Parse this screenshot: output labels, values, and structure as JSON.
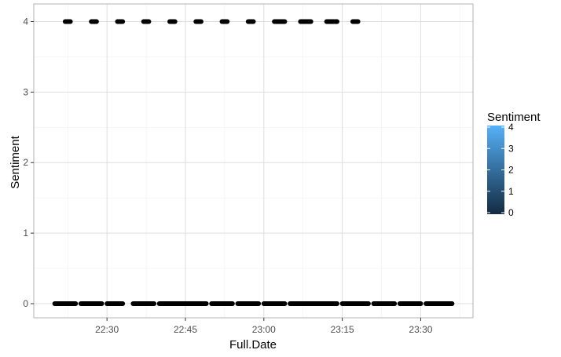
{
  "chart_data": {
    "type": "scatter",
    "title": "",
    "xlabel": "Full.Date",
    "ylabel": "Sentiment",
    "x_ticks": [
      "22:30",
      "22:45",
      "23:00",
      "23:15",
      "23:30"
    ],
    "x_tick_values": [
      "22:30",
      "22:45",
      "23:00",
      "23:15",
      "23:30"
    ],
    "y_ticks": [
      "0",
      "1",
      "2",
      "3",
      "4"
    ],
    "xlim": [
      "22:16",
      "23:40"
    ],
    "ylim": [
      -0.2,
      4.25
    ],
    "grid": true,
    "series": [
      {
        "y": 4,
        "color": "#56b1f7",
        "segments": [
          [
            "22:22",
            "22:23"
          ],
          [
            "22:27",
            "22:28"
          ],
          [
            "22:32",
            "22:33"
          ],
          [
            "22:37",
            "22:38"
          ],
          [
            "22:42",
            "22:43"
          ],
          [
            "22:47",
            "22:48"
          ],
          [
            "22:52",
            "22:53"
          ],
          [
            "22:57",
            "22:58"
          ],
          [
            "23:02",
            "23:04"
          ],
          [
            "23:07",
            "23:09"
          ],
          [
            "23:12",
            "23:14"
          ],
          [
            "23:17",
            "23:18"
          ]
        ]
      },
      {
        "y": 0,
        "color": "#132b43",
        "segments": [
          [
            "22:20",
            "22:24"
          ],
          [
            "22:25",
            "22:29"
          ],
          [
            "22:30",
            "22:33"
          ],
          [
            "22:35",
            "22:39"
          ],
          [
            "22:40",
            "22:49"
          ],
          [
            "22:50",
            "22:54"
          ],
          [
            "22:55",
            "22:59"
          ],
          [
            "23:00",
            "23:04"
          ],
          [
            "23:05",
            "23:14"
          ],
          [
            "23:15",
            "23:20"
          ],
          [
            "23:21",
            "23:25"
          ],
          [
            "23:26",
            "23:30"
          ],
          [
            "23:31",
            "23:36"
          ]
        ]
      }
    ],
    "legend": {
      "title": "Sentiment",
      "type": "colorbar",
      "position": "right",
      "labels": [
        "4",
        "3",
        "2",
        "1",
        "0"
      ],
      "values": [
        4,
        3,
        2,
        1,
        0
      ],
      "low_color": "#132b43",
      "high_color": "#56b1f7"
    }
  }
}
